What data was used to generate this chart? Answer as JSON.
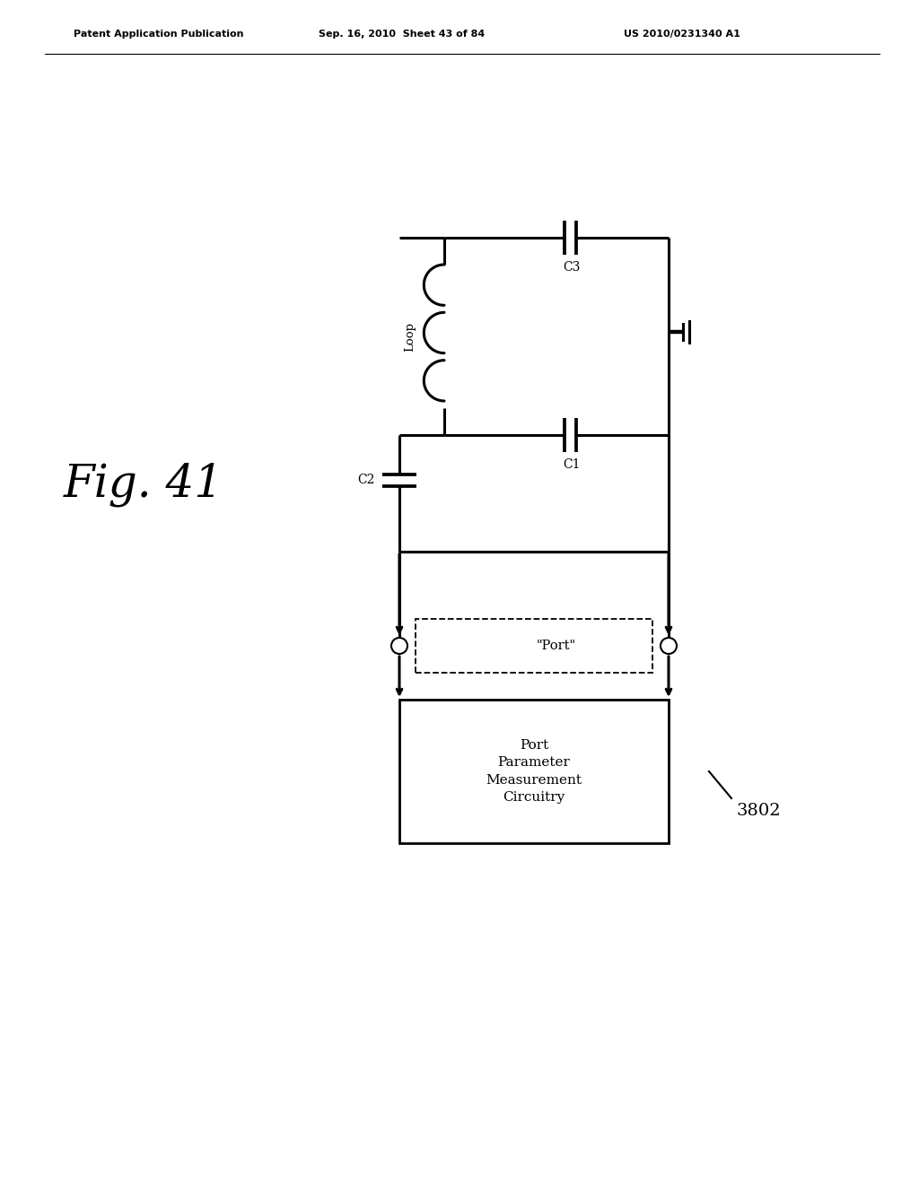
{
  "bg_color": "#ffffff",
  "line_color": "#000000",
  "header_left": "Patent Application Publication",
  "header_mid": "Sep. 16, 2010  Sheet 43 of 84",
  "header_right": "US 2010/0231340 A1",
  "fig_label": "Fig. 41",
  "ref_label": "3802",
  "port_label": "\"Port\"",
  "box_label": "Port\nParameter\nMeasurement\nCircuitry",
  "loop_label": "Loop",
  "c1_label": "C1",
  "c2_label": "C2",
  "c3_label": "C3"
}
